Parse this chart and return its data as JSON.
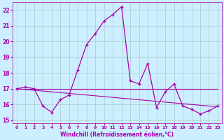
{
  "xlabel": "Windchill (Refroidissement éolien,°C)",
  "bg_color": "#cceeff",
  "grid_color": "#aacccc",
  "line_color": "#aa00aa",
  "x": [
    0,
    1,
    2,
    3,
    4,
    5,
    6,
    7,
    8,
    9,
    10,
    11,
    12,
    13,
    14,
    15,
    16,
    17,
    18,
    19,
    20,
    21,
    22,
    23
  ],
  "temp": [
    17.0,
    17.1,
    17.0,
    15.9,
    15.5,
    16.3,
    16.6,
    18.2,
    19.8,
    20.5,
    21.3,
    21.7,
    22.2,
    17.5,
    17.3,
    18.6,
    15.8,
    16.8,
    17.3,
    15.9,
    15.7,
    15.4,
    15.6,
    15.9
  ],
  "trend1": [
    17.0,
    16.95,
    16.9,
    16.85,
    16.8,
    16.75,
    16.7,
    16.65,
    16.6,
    16.55,
    16.5,
    16.45,
    16.4,
    16.35,
    16.3,
    16.25,
    16.2,
    16.15,
    16.1,
    16.05,
    16.0,
    15.95,
    15.9,
    15.85
  ],
  "trend2_x": [
    0,
    23
  ],
  "trend2_y": [
    17.0,
    17.0
  ],
  "ylim": [
    14.8,
    22.5
  ],
  "yticks": [
    15,
    16,
    17,
    18,
    19,
    20,
    21,
    22
  ],
  "xticks": [
    0,
    1,
    2,
    3,
    4,
    5,
    6,
    7,
    8,
    9,
    10,
    11,
    12,
    13,
    14,
    15,
    16,
    17,
    18,
    19,
    20,
    21,
    22,
    23
  ]
}
